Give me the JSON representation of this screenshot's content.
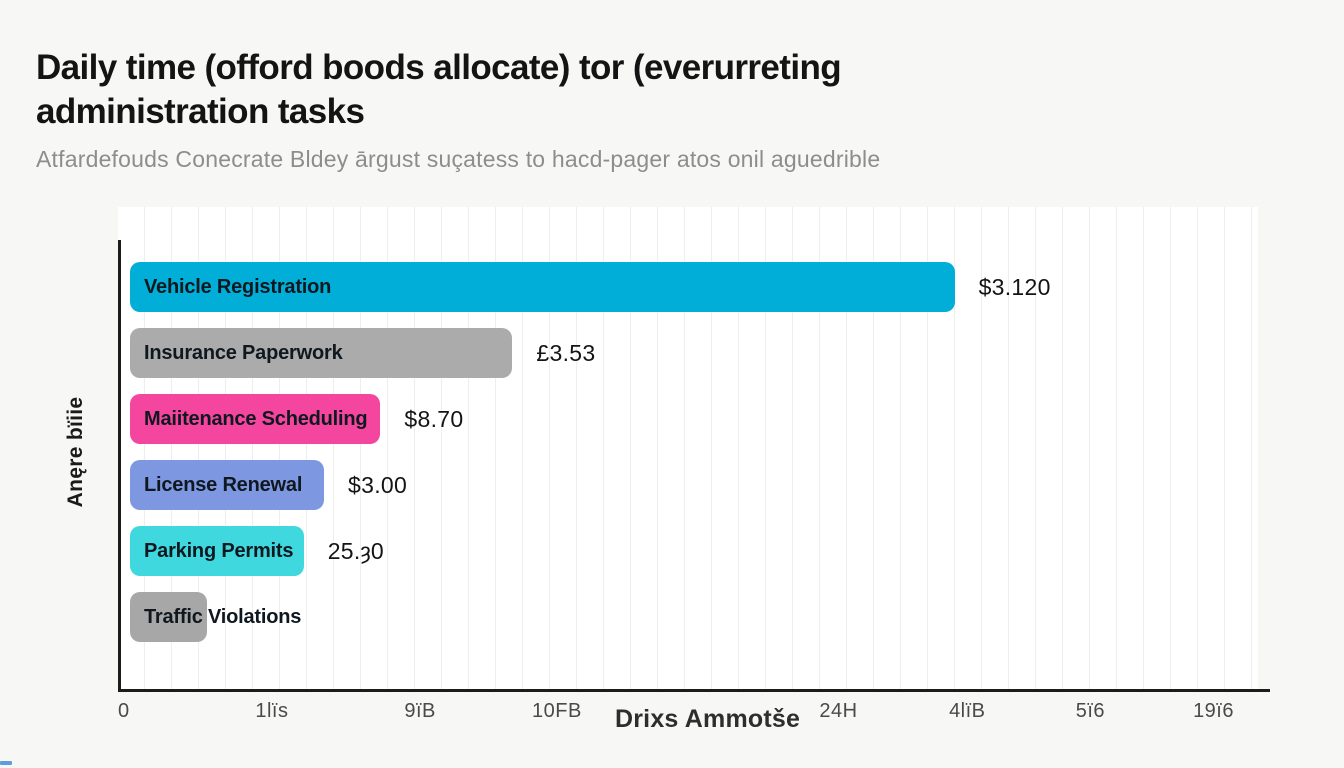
{
  "header": {
    "title_line1": "Daily time (offord boods allocate) tor (everurreting",
    "title_line2": "administration tasks",
    "subtitle": "Atfardefouds Conecrate Bldey ārgust suçatess to hacd-pager atos onil aguedrible"
  },
  "chart_data": {
    "type": "bar",
    "orientation": "horizontal",
    "title": "Daily time (offord boods allocate) tor (everurreting administration tasks",
    "subtitle": "Atfardefouds Conecrate Bldey ārgust suçatess to hacd-pager atos onil aguedrible",
    "xlabel": "Drixs Ammotše",
    "ylabel": "Anęre bïiie",
    "grid": "faint vertical gridlines, white plot background",
    "legend": "none",
    "x_ticks": [
      {
        "label": "0",
        "pos_pct": 0
      },
      {
        "label": "1lïs",
        "pos_pct": 13.5
      },
      {
        "label": "9ïB",
        "pos_pct": 26.5
      },
      {
        "label": "10FB",
        "pos_pct": 38.5
      },
      {
        "label": "24H",
        "pos_pct": 63.2
      },
      {
        "label": "4lïB",
        "pos_pct": 74.5
      },
      {
        "label": "5ï6",
        "pos_pct": 85.3
      },
      {
        "label": "19ï6",
        "pos_pct": 96.1
      }
    ],
    "series": [
      {
        "category": "Vehicle Registration",
        "value_label": "$3.120",
        "length_pct": 73.1,
        "color": "#00aed8"
      },
      {
        "category": "Insurance Paperwork",
        "value_label": "£3.53",
        "length_pct": 33.9,
        "color": "#ababab"
      },
      {
        "category": "Maiitenance Scheduling",
        "value_label": "$8.70",
        "length_pct": 22.2,
        "color": "#f4459f"
      },
      {
        "category": "License Renewal",
        "value_label": "$3.00",
        "length_pct": 17.2,
        "color": "#7d98e0"
      },
      {
        "category": "Parking Permits",
        "value_label": "25.ȝ0",
        "length_pct": 15.4,
        "color": "#3fd8df"
      },
      {
        "category": "Traffic Violations",
        "value_label": "",
        "length_pct": 6.8,
        "color": "#a7a7a7"
      }
    ],
    "colors": {
      "axis": "#1c1c1c",
      "gridline": "#eeeeec",
      "plot_background": "#ffffff",
      "page_background": "#f7f7f5",
      "tick_text": "#4a4a4a",
      "value_text": "#141414"
    }
  }
}
